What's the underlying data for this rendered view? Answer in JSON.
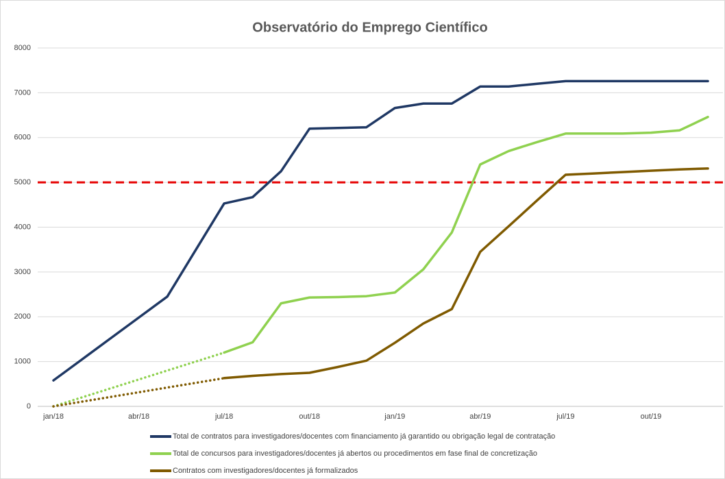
{
  "chart_data": {
    "type": "line",
    "title": "Observatório do Emprego Científico",
    "categories": [
      "jan/18",
      null,
      null,
      "abr/18",
      null,
      null,
      "jul/18",
      null,
      null,
      "out/18",
      null,
      null,
      "jan/19",
      null,
      null,
      "abr/19",
      null,
      null,
      "jul/19",
      null,
      null,
      "out/19",
      null,
      null
    ],
    "series": [
      {
        "name": "Total de contratos para investigadores/docentes com financiamento já garantido ou obrigação legal de contratação",
        "color": "#1f3864",
        "values": [
          580,
          1047,
          1515,
          1982,
          2450,
          3490,
          4530,
          4670,
          5250,
          6200,
          6215,
          6230,
          6660,
          6760,
          6760,
          7140,
          7140,
          7200,
          7260,
          7260,
          7260,
          7260,
          7260,
          7260
        ]
      },
      {
        "name": "Total de concursos para investigadores/docentes já abertos ou procedimentos em fase final de concretização",
        "color": "#8fd14f",
        "values": [
          0,
          null,
          null,
          null,
          null,
          null,
          1200,
          1430,
          2300,
          2430,
          2440,
          2460,
          2540,
          3060,
          3880,
          5400,
          5700,
          5900,
          6090,
          6090,
          6090,
          6110,
          6160,
          6460
        ]
      },
      {
        "name": "Contratos com investigadores/docentes já formalizados",
        "color": "#7f5a00",
        "values": [
          0,
          null,
          null,
          null,
          null,
          null,
          630,
          680,
          720,
          750,
          880,
          1020,
          1420,
          1850,
          2170,
          3450,
          4020,
          4600,
          5170,
          5200,
          5230,
          5260,
          5290,
          5310
        ]
      }
    ],
    "gap_style": "dotted",
    "reference_line": {
      "value": 5000,
      "color": "#e60000",
      "style": "dashed"
    },
    "ylim": [
      0,
      8000
    ],
    "yticks": [
      0,
      1000,
      2000,
      3000,
      4000,
      5000,
      6000,
      7000,
      8000
    ],
    "grid": true,
    "legend": "bottom"
  }
}
